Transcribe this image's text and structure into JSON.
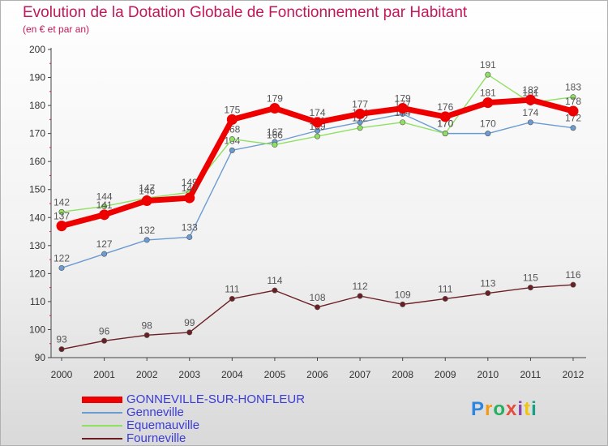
{
  "chart_data": {
    "type": "line",
    "title": "Evolution de la Dotation Globale de Fonctionnement par Habitant",
    "subtitle": "(en € et par an)",
    "x": [
      2000,
      2001,
      2002,
      2003,
      2004,
      2005,
      2006,
      2007,
      2008,
      2009,
      2010,
      2011,
      2012
    ],
    "ylim": [
      90,
      200
    ],
    "yticks": [
      90,
      100,
      110,
      120,
      130,
      140,
      150,
      160,
      170,
      180,
      190,
      200
    ],
    "grid": false,
    "legend_position": "bottom-left",
    "series": [
      {
        "name": "GONNEVILLE-SUR-HONFLEUR",
        "color": "#ee0000",
        "values": [
          137,
          141,
          146,
          147,
          175,
          179,
          174,
          177,
          179,
          176,
          181,
          182,
          178
        ]
      },
      {
        "name": "Genneville",
        "color": "#6a9bd1",
        "values": [
          122,
          127,
          132,
          133,
          164,
          167,
          171,
          174,
          177,
          170,
          170,
          174,
          172
        ]
      },
      {
        "name": "Equemauville",
        "color": "#8fe060",
        "values": [
          142,
          144,
          147,
          149,
          168,
          166,
          169,
          172,
          174,
          170,
          191,
          181,
          183
        ]
      },
      {
        "name": "Fourneville",
        "color": "#6b1f24",
        "values": [
          93,
          96,
          98,
          99,
          111,
          114,
          108,
          112,
          109,
          111,
          113,
          115,
          116
        ]
      }
    ]
  },
  "logo": {
    "text": "Proxiti"
  }
}
